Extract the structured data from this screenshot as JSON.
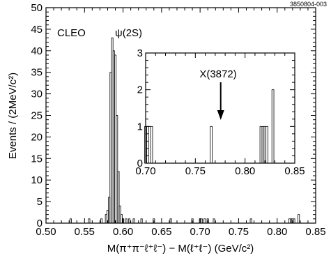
{
  "figure_id": "3850804-003",
  "chart_data": [
    {
      "type": "histogram",
      "panel": "main",
      "xlabel": "M(π⁺π⁻ℓ⁺ℓ⁻) − M(ℓ⁺ℓ⁻) (GeV/c²)",
      "ylabel": "Events / (2MeV/c²)",
      "xlim": [
        0.5,
        0.85
      ],
      "ylim": [
        0,
        50
      ],
      "x_ticks": [
        "0.50",
        "0.55",
        "0.60",
        "0.65",
        "0.70",
        "0.75",
        "0.80",
        "0.85"
      ],
      "y_ticks": [
        "0",
        "5",
        "10",
        "15",
        "20",
        "25",
        "30",
        "35",
        "40",
        "45",
        "50"
      ],
      "bin_width": 0.002,
      "bins": [
        {
          "x": 0.532,
          "y": 1
        },
        {
          "x": 0.556,
          "y": 1
        },
        {
          "x": 0.572,
          "y": 1
        },
        {
          "x": 0.578,
          "y": 2
        },
        {
          "x": 0.58,
          "y": 3
        },
        {
          "x": 0.582,
          "y": 6
        },
        {
          "x": 0.584,
          "y": 35
        },
        {
          "x": 0.586,
          "y": 43
        },
        {
          "x": 0.588,
          "y": 40
        },
        {
          "x": 0.59,
          "y": 39
        },
        {
          "x": 0.592,
          "y": 25
        },
        {
          "x": 0.594,
          "y": 12
        },
        {
          "x": 0.596,
          "y": 4
        },
        {
          "x": 0.598,
          "y": 2
        },
        {
          "x": 0.6,
          "y": 1
        },
        {
          "x": 0.604,
          "y": 1
        },
        {
          "x": 0.608,
          "y": 1
        },
        {
          "x": 0.614,
          "y": 1
        },
        {
          "x": 0.624,
          "y": 1
        },
        {
          "x": 0.64,
          "y": 1
        },
        {
          "x": 0.662,
          "y": 1
        },
        {
          "x": 0.69,
          "y": 1
        },
        {
          "x": 0.7,
          "y": 1
        },
        {
          "x": 0.702,
          "y": 1
        },
        {
          "x": 0.706,
          "y": 1
        },
        {
          "x": 0.71,
          "y": 1
        },
        {
          "x": 0.718,
          "y": 1
        },
        {
          "x": 0.766,
          "y": 1
        },
        {
          "x": 0.816,
          "y": 1
        },
        {
          "x": 0.818,
          "y": 1
        },
        {
          "x": 0.82,
          "y": 1
        },
        {
          "x": 0.822,
          "y": 1
        },
        {
          "x": 0.828,
          "y": 2
        }
      ],
      "annotations": [
        "CLEO",
        "ψ(2S)"
      ]
    },
    {
      "type": "histogram",
      "panel": "inset",
      "xlim": [
        0.7,
        0.85
      ],
      "ylim": [
        0,
        3
      ],
      "x_ticks": [
        "0.70",
        "0.75",
        "0.80",
        "0.85"
      ],
      "y_ticks": [
        "0",
        "1",
        "2",
        "3"
      ],
      "bin_width": 0.002,
      "bins": [
        {
          "x": 0.7,
          "y": 1
        },
        {
          "x": 0.702,
          "y": 1
        },
        {
          "x": 0.706,
          "y": 1
        },
        {
          "x": 0.766,
          "y": 1
        },
        {
          "x": 0.816,
          "y": 1
        },
        {
          "x": 0.818,
          "y": 1
        },
        {
          "x": 0.82,
          "y": 1
        },
        {
          "x": 0.822,
          "y": 1
        },
        {
          "x": 0.828,
          "y": 2
        }
      ],
      "annotations": [
        "X(3872)"
      ],
      "arrow_at_x": 0.7755
    }
  ]
}
